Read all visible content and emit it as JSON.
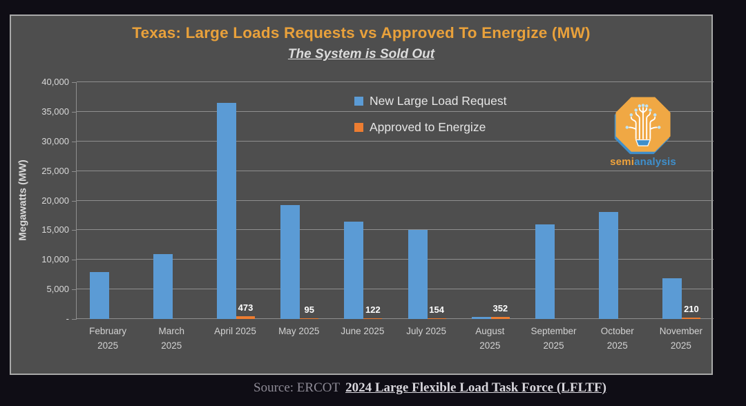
{
  "header": {
    "title": "Texas: Large Loads Requests vs Approved To Energize (MW)",
    "subtitle": "The System is Sold Out"
  },
  "y_axis": {
    "label": "Megawatts (MW)",
    "ticks": [
      "40,000",
      "35,000",
      "30,000",
      "25,000",
      "20,000",
      "15,000",
      "10,000",
      "5,000",
      "-"
    ]
  },
  "legend": {
    "items": [
      {
        "label": "New Large Load Request",
        "color": "#5B9BD5"
      },
      {
        "label": "Approved to Energize",
        "color": "#ED7D31"
      }
    ]
  },
  "logo": {
    "text_semi": "semi",
    "text_analysis": "analysis"
  },
  "footer": {
    "source_prefix": "Source: ERCOT",
    "link_text": "2024 Large Flexible Load Task Force (LFLTF)"
  },
  "colors": {
    "background": "#0f0d15",
    "card_background": "#4E4E4E",
    "card_border": "#A9A9A9",
    "gridline": "#8F8F8F",
    "title": "#E9A13B",
    "series_blue": "#5B9BD5",
    "series_orange": "#ED7D31"
  },
  "chart_data": {
    "type": "bar",
    "title": "Texas: Large Loads Requests vs Approved To Energize (MW)",
    "subtitle": "The System is Sold Out",
    "categories": [
      "February 2025",
      "March 2025",
      "April 2025",
      "May 2025",
      "June 2025",
      "July 2025",
      "August 2025",
      "September 2025",
      "October 2025",
      "November 2025"
    ],
    "category_lines": [
      [
        "February",
        "2025"
      ],
      [
        "March",
        "2025"
      ],
      [
        "April 2025"
      ],
      [
        "May 2025"
      ],
      [
        "June 2025"
      ],
      [
        "July 2025"
      ],
      [
        "August",
        "2025"
      ],
      [
        "September",
        "2025"
      ],
      [
        "October",
        "2025"
      ],
      [
        "November",
        "2025"
      ]
    ],
    "series": [
      {
        "name": "New Large Load Request",
        "color": "#5B9BD5",
        "values": [
          7900,
          11000,
          36500,
          19200,
          16500,
          15000,
          400,
          16000,
          18100,
          6900
        ]
      },
      {
        "name": "Approved to Energize",
        "color": "#ED7D31",
        "values": [
          0,
          0,
          473,
          95,
          122,
          154,
          352,
          0,
          0,
          210
        ],
        "data_labels": [
          "",
          "",
          "473",
          "95",
          "122",
          "154",
          "352",
          "",
          "",
          "210"
        ]
      }
    ],
    "ylabel": "Megawatts (MW)",
    "ylim": [
      0,
      40000
    ],
    "ytick_step": 5000,
    "grid": true,
    "legend_position": "inside-top-center"
  }
}
